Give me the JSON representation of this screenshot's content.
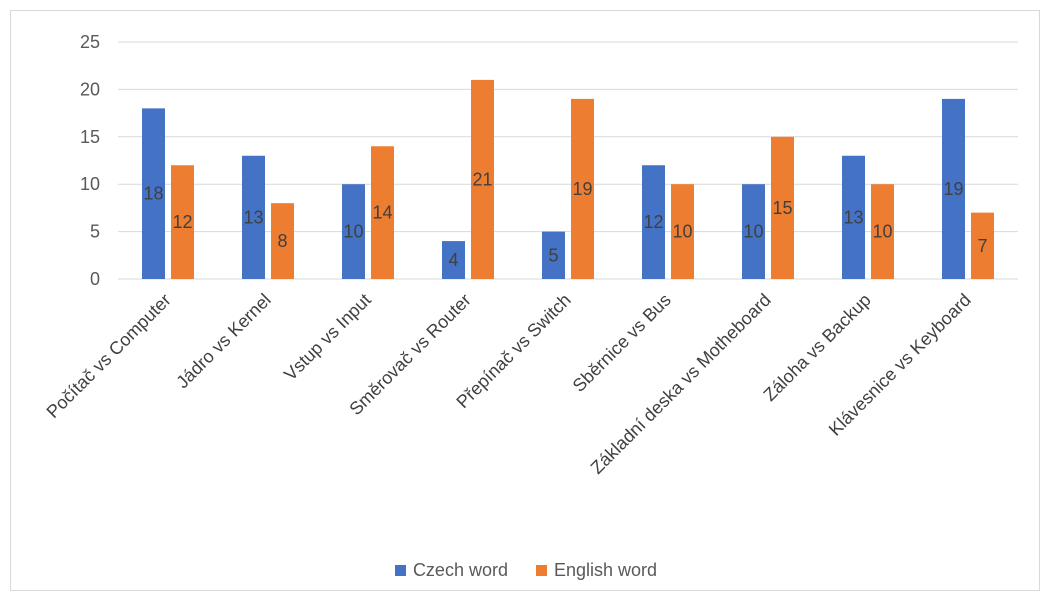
{
  "chart_data": {
    "type": "bar",
    "title": "",
    "xlabel": "",
    "ylabel": "",
    "categories": [
      "Počítač vs Computer",
      "Jádro vs Kernel",
      "Vstup vs Input",
      "Směrovač vs Router",
      "Přepínač vs Switch",
      "Sběrnice vs Bus",
      "Základní deska vs Motheboard",
      "Záloha vs Backup",
      "Klávesnice vs Keyboard"
    ],
    "series": [
      {
        "name": "Czech word",
        "color": "#4472c4",
        "values": [
          18,
          13,
          10,
          4,
          5,
          12,
          10,
          13,
          19
        ]
      },
      {
        "name": "English word",
        "color": "#ed7d31",
        "values": [
          12,
          8,
          14,
          21,
          19,
          10,
          15,
          10,
          7
        ]
      }
    ],
    "ylim": [
      0,
      25
    ],
    "yticks": [
      0,
      5,
      10,
      15,
      20,
      25
    ],
    "grid": true,
    "legend_position": "bottom",
    "data_labels": true
  }
}
